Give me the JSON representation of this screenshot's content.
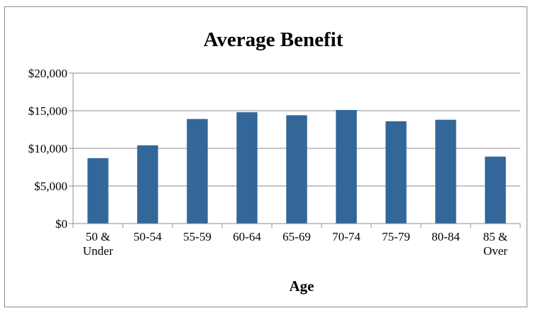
{
  "chart_data": {
    "type": "bar",
    "title": "Average Benefit",
    "xlabel": "Age",
    "ylabel": "",
    "categories": [
      [
        "50 &",
        "Under"
      ],
      [
        "50-54"
      ],
      [
        "55-59"
      ],
      [
        "60-64"
      ],
      [
        "65-69"
      ],
      [
        "70-74"
      ],
      [
        "75-79"
      ],
      [
        "80-84"
      ],
      [
        "85 &",
        "Over"
      ]
    ],
    "values": [
      8700,
      10400,
      13900,
      14800,
      14400,
      15100,
      13600,
      13800,
      8900
    ],
    "ylim": [
      0,
      20000
    ],
    "yticks": [
      {
        "value": 0,
        "label": "$0"
      },
      {
        "value": 5000,
        "label": "$5,000"
      },
      {
        "value": 10000,
        "label": "$10,000"
      },
      {
        "value": 15000,
        "label": "$15,000"
      },
      {
        "value": 20000,
        "label": "$20,000"
      }
    ],
    "grid": true,
    "legend": "none",
    "colors": {
      "bar": "#336699",
      "grid": "#8c8c8c",
      "axis": "#8c8c8c"
    }
  }
}
